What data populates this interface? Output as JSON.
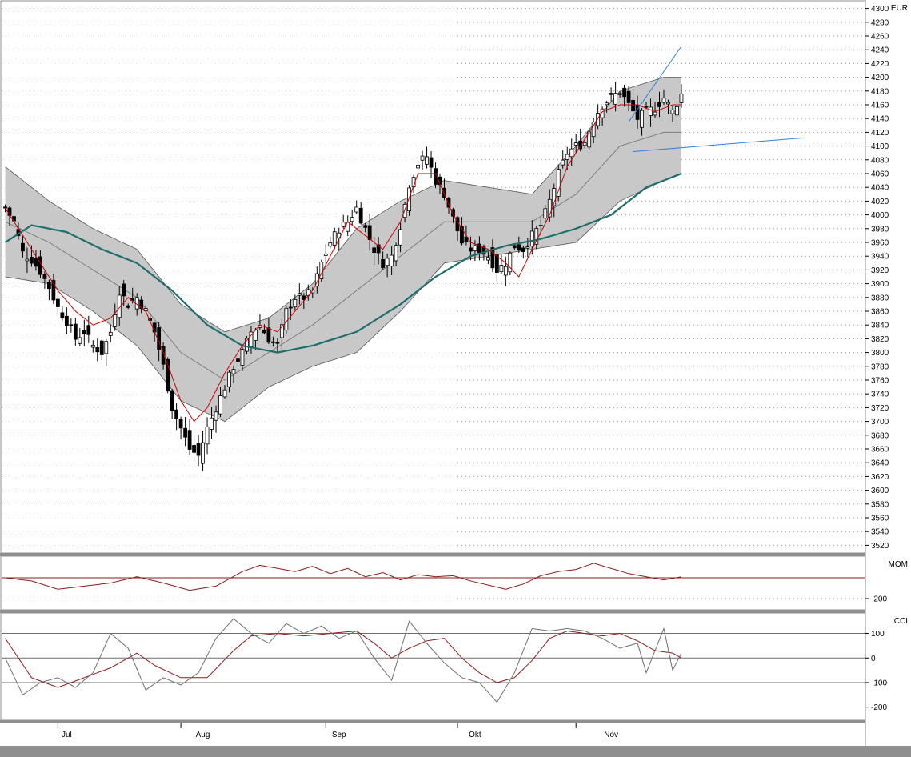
{
  "colors": {
    "background": "#ffffff",
    "frame": "#8f8f8f",
    "grid": "#9a9a9a",
    "band_fill": "#c8c8c8",
    "band_line": "#444444",
    "mid_line": "#7d7d7d",
    "ma_slow": "#1f6e6e",
    "ma_fast": "#cc0000",
    "trendline": "#2f7fd8",
    "candle_up": "#ffffff",
    "candle_down": "#000000",
    "indicator_main": "#8b1a1a",
    "indicator_signal": "#6e6e6e"
  },
  "chart_data": [
    {
      "type": "candlestick",
      "currency_label": "EUR",
      "ylim": [
        3510,
        4310
      ],
      "y_ticks": [
        3520,
        3540,
        3560,
        3580,
        3600,
        3620,
        3640,
        3660,
        3680,
        3700,
        3720,
        3740,
        3760,
        3780,
        3800,
        3820,
        3840,
        3860,
        3880,
        3900,
        3920,
        3940,
        3960,
        3980,
        4000,
        4020,
        4040,
        4060,
        4080,
        4100,
        4120,
        4140,
        4160,
        4180,
        4200,
        4220,
        4240,
        4260,
        4280,
        4300
      ],
      "x_labels": [
        "Jul",
        "Aug",
        "Sep",
        "Okt",
        "Nov"
      ],
      "x_label_bars": [
        14,
        45,
        76,
        107,
        138
      ],
      "month_boundary_bars": [
        12,
        40,
        73,
        103,
        130
      ],
      "bar_count": 155,
      "ohlc_close_pivots": [
        [
          0,
          4010
        ],
        [
          2,
          3990
        ],
        [
          4,
          3945
        ],
        [
          6,
          3935
        ],
        [
          8,
          3918
        ],
        [
          10,
          3895
        ],
        [
          12,
          3865
        ],
        [
          14,
          3845
        ],
        [
          16,
          3820
        ],
        [
          18,
          3830
        ],
        [
          20,
          3810
        ],
        [
          22,
          3800
        ],
        [
          24,
          3830
        ],
        [
          26,
          3890
        ],
        [
          28,
          3870
        ],
        [
          30,
          3880
        ],
        [
          32,
          3860
        ],
        [
          34,
          3830
        ],
        [
          36,
          3780
        ],
        [
          38,
          3720
        ],
        [
          40,
          3690
        ],
        [
          42,
          3660
        ],
        [
          44,
          3650
        ],
        [
          46,
          3690
        ],
        [
          48,
          3720
        ],
        [
          50,
          3750
        ],
        [
          52,
          3780
        ],
        [
          54,
          3800
        ],
        [
          56,
          3830
        ],
        [
          58,
          3840
        ],
        [
          60,
          3820
        ],
        [
          62,
          3810
        ],
        [
          64,
          3860
        ],
        [
          66,
          3880
        ],
        [
          68,
          3880
        ],
        [
          70,
          3890
        ],
        [
          72,
          3930
        ],
        [
          74,
          3960
        ],
        [
          76,
          3980
        ],
        [
          78,
          3990
        ],
        [
          80,
          4010
        ],
        [
          82,
          3980
        ],
        [
          84,
          3950
        ],
        [
          86,
          3930
        ],
        [
          88,
          3940
        ],
        [
          90,
          3985
        ],
        [
          92,
          4045
        ],
        [
          94,
          4075
        ],
        [
          96,
          4085
        ],
        [
          98,
          4050
        ],
        [
          100,
          4030
        ],
        [
          102,
          3995
        ],
        [
          104,
          3960
        ],
        [
          106,
          3950
        ],
        [
          108,
          3950
        ],
        [
          110,
          3940
        ],
        [
          112,
          3920
        ],
        [
          114,
          3930
        ],
        [
          116,
          3955
        ],
        [
          118,
          3950
        ],
        [
          120,
          3970
        ],
        [
          122,
          3985
        ],
        [
          124,
          4020
        ],
        [
          126,
          4060
        ],
        [
          128,
          4090
        ],
        [
          130,
          4100
        ],
        [
          132,
          4105
        ],
        [
          134,
          4140
        ],
        [
          136,
          4160
        ],
        [
          138,
          4170
        ],
        [
          140,
          4180
        ],
        [
          142,
          4160
        ],
        [
          144,
          4140
        ],
        [
          146,
          4150
        ],
        [
          148,
          4155
        ],
        [
          150,
          4170
        ],
        [
          152,
          4150
        ],
        [
          154,
          4175
        ]
      ],
      "bollinger": {
        "upper_pivots": [
          [
            0,
            4070
          ],
          [
            10,
            4020
          ],
          [
            20,
            3980
          ],
          [
            30,
            3950
          ],
          [
            40,
            3870
          ],
          [
            50,
            3830
          ],
          [
            60,
            3850
          ],
          [
            70,
            3900
          ],
          [
            80,
            3980
          ],
          [
            90,
            4020
          ],
          [
            100,
            4050
          ],
          [
            110,
            4040
          ],
          [
            120,
            4030
          ],
          [
            130,
            4100
          ],
          [
            140,
            4180
          ],
          [
            150,
            4200
          ],
          [
            154,
            4200
          ]
        ],
        "middle_pivots": [
          [
            0,
            3990
          ],
          [
            10,
            3960
          ],
          [
            20,
            3920
          ],
          [
            30,
            3880
          ],
          [
            40,
            3800
          ],
          [
            50,
            3760
          ],
          [
            60,
            3800
          ],
          [
            70,
            3840
          ],
          [
            80,
            3890
          ],
          [
            90,
            3940
          ],
          [
            100,
            3990
          ],
          [
            110,
            3990
          ],
          [
            120,
            3990
          ],
          [
            130,
            4030
          ],
          [
            140,
            4100
          ],
          [
            150,
            4120
          ],
          [
            154,
            4120
          ]
        ],
        "lower_pivots": [
          [
            0,
            3910
          ],
          [
            10,
            3900
          ],
          [
            20,
            3860
          ],
          [
            30,
            3810
          ],
          [
            40,
            3730
          ],
          [
            50,
            3700
          ],
          [
            60,
            3750
          ],
          [
            70,
            3780
          ],
          [
            80,
            3800
          ],
          [
            90,
            3860
          ],
          [
            100,
            3930
          ],
          [
            110,
            3940
          ],
          [
            120,
            3950
          ],
          [
            130,
            3960
          ],
          [
            140,
            4020
          ],
          [
            150,
            4050
          ],
          [
            154,
            4060
          ]
        ]
      },
      "ma_slow_pivots": [
        [
          0,
          3960
        ],
        [
          6,
          3985
        ],
        [
          14,
          3975
        ],
        [
          22,
          3950
        ],
        [
          30,
          3930
        ],
        [
          38,
          3890
        ],
        [
          46,
          3840
        ],
        [
          54,
          3810
        ],
        [
          62,
          3800
        ],
        [
          70,
          3810
        ],
        [
          80,
          3830
        ],
        [
          90,
          3870
        ],
        [
          98,
          3910
        ],
        [
          106,
          3940
        ],
        [
          114,
          3955
        ],
        [
          122,
          3965
        ],
        [
          130,
          3980
        ],
        [
          138,
          4000
        ],
        [
          146,
          4040
        ],
        [
          154,
          4060
        ]
      ],
      "ma_fast_pivots": [
        [
          0,
          4010
        ],
        [
          4,
          3970
        ],
        [
          8,
          3930
        ],
        [
          12,
          3890
        ],
        [
          16,
          3860
        ],
        [
          20,
          3840
        ],
        [
          24,
          3850
        ],
        [
          28,
          3880
        ],
        [
          32,
          3860
        ],
        [
          36,
          3800
        ],
        [
          40,
          3730
        ],
        [
          43,
          3700
        ],
        [
          46,
          3720
        ],
        [
          50,
          3770
        ],
        [
          54,
          3810
        ],
        [
          58,
          3840
        ],
        [
          62,
          3830
        ],
        [
          66,
          3860
        ],
        [
          70,
          3890
        ],
        [
          74,
          3940
        ],
        [
          78,
          3990
        ],
        [
          82,
          3970
        ],
        [
          86,
          3950
        ],
        [
          90,
          3990
        ],
        [
          94,
          4060
        ],
        [
          98,
          4060
        ],
        [
          102,
          4000
        ],
        [
          106,
          3960
        ],
        [
          110,
          3950
        ],
        [
          114,
          3930
        ],
        [
          117,
          3910
        ],
        [
          120,
          3950
        ],
        [
          124,
          4000
        ],
        [
          128,
          4070
        ],
        [
          132,
          4110
        ],
        [
          136,
          4150
        ],
        [
          140,
          4160
        ],
        [
          144,
          4160
        ],
        [
          148,
          4150
        ],
        [
          152,
          4160
        ],
        [
          154,
          4160
        ]
      ],
      "trendlines": [
        {
          "from": [
            142,
            4135
          ],
          "to": [
            154,
            4245
          ]
        },
        {
          "from": [
            143,
            4092
          ],
          "to": [
            182,
            4112
          ]
        }
      ]
    },
    {
      "type": "line",
      "indicator_label": "MOM",
      "ylim": [
        -300,
        200
      ],
      "y_ticks": [
        -200
      ],
      "zero_line": 0,
      "series": [
        {
          "pivots": [
            [
              0,
              0
            ],
            [
              6,
              -30
            ],
            [
              12,
              -110
            ],
            [
              18,
              -80
            ],
            [
              24,
              -50
            ],
            [
              30,
              10
            ],
            [
              36,
              -50
            ],
            [
              42,
              -120
            ],
            [
              48,
              -80
            ],
            [
              54,
              60
            ],
            [
              58,
              120
            ],
            [
              62,
              90
            ],
            [
              66,
              60
            ],
            [
              70,
              110
            ],
            [
              74,
              40
            ],
            [
              78,
              90
            ],
            [
              82,
              10
            ],
            [
              86,
              50
            ],
            [
              90,
              -20
            ],
            [
              94,
              30
            ],
            [
              98,
              10
            ],
            [
              102,
              20
            ],
            [
              106,
              -30
            ],
            [
              110,
              -70
            ],
            [
              114,
              -110
            ],
            [
              118,
              -60
            ],
            [
              122,
              20
            ],
            [
              126,
              60
            ],
            [
              130,
              80
            ],
            [
              134,
              140
            ],
            [
              138,
              90
            ],
            [
              142,
              40
            ],
            [
              146,
              10
            ],
            [
              150,
              -20
            ],
            [
              154,
              10
            ]
          ]
        }
      ]
    },
    {
      "type": "line",
      "indicator_label": "CCI",
      "ylim": [
        -250,
        180
      ],
      "y_ticks": [
        100,
        0,
        -100,
        -200
      ],
      "horizontal_levels": [
        100,
        0,
        -100
      ],
      "series": [
        {
          "name": "main",
          "pivots": [
            [
              0,
              0
            ],
            [
              4,
              -150
            ],
            [
              8,
              -100
            ],
            [
              12,
              -80
            ],
            [
              16,
              -120
            ],
            [
              20,
              -60
            ],
            [
              24,
              100
            ],
            [
              28,
              40
            ],
            [
              32,
              -130
            ],
            [
              36,
              -80
            ],
            [
              40,
              -110
            ],
            [
              44,
              -60
            ],
            [
              48,
              80
            ],
            [
              52,
              160
            ],
            [
              56,
              100
            ],
            [
              60,
              60
            ],
            [
              64,
              140
            ],
            [
              68,
              100
            ],
            [
              72,
              130
            ],
            [
              76,
              80
            ],
            [
              80,
              110
            ],
            [
              84,
              0
            ],
            [
              88,
              -90
            ],
            [
              92,
              150
            ],
            [
              96,
              60
            ],
            [
              100,
              -20
            ],
            [
              104,
              -80
            ],
            [
              108,
              -100
            ],
            [
              112,
              -180
            ],
            [
              116,
              -60
            ],
            [
              120,
              120
            ],
            [
              124,
              110
            ],
            [
              128,
              120
            ],
            [
              132,
              110
            ],
            [
              136,
              80
            ],
            [
              140,
              40
            ],
            [
              144,
              60
            ],
            [
              146,
              -60
            ],
            [
              150,
              120
            ],
            [
              152,
              -50
            ],
            [
              154,
              20
            ]
          ]
        },
        {
          "name": "signal",
          "pivots": [
            [
              0,
              80
            ],
            [
              6,
              -80
            ],
            [
              12,
              -120
            ],
            [
              18,
              -80
            ],
            [
              24,
              -40
            ],
            [
              30,
              20
            ],
            [
              34,
              -30
            ],
            [
              40,
              -80
            ],
            [
              46,
              -80
            ],
            [
              52,
              30
            ],
            [
              56,
              90
            ],
            [
              62,
              100
            ],
            [
              68,
              90
            ],
            [
              74,
              100
            ],
            [
              80,
              110
            ],
            [
              84,
              60
            ],
            [
              88,
              0
            ],
            [
              92,
              40
            ],
            [
              96,
              70
            ],
            [
              100,
              80
            ],
            [
              104,
              0
            ],
            [
              108,
              -60
            ],
            [
              112,
              -100
            ],
            [
              116,
              -80
            ],
            [
              120,
              -10
            ],
            [
              124,
              80
            ],
            [
              128,
              110
            ],
            [
              132,
              100
            ],
            [
              136,
              90
            ],
            [
              140,
              100
            ],
            [
              144,
              70
            ],
            [
              148,
              30
            ],
            [
              152,
              20
            ],
            [
              154,
              0
            ]
          ]
        }
      ]
    }
  ]
}
